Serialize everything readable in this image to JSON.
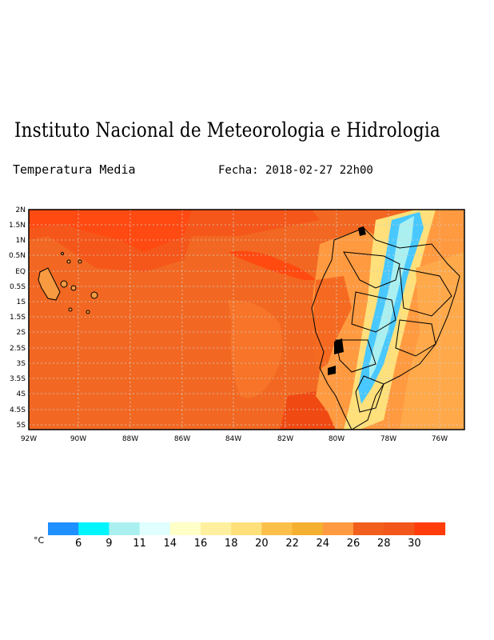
{
  "header": {
    "title": "Instituto Nacional de Meteorologia e Hidrologia",
    "variable": "Temperatura Media",
    "date": "Fecha: 2018-02-27 22h00"
  },
  "map": {
    "lat_labels": [
      "2N",
      "1.5N",
      "1N",
      "0.5N",
      "EQ",
      "0.5S",
      "1S",
      "1.5S",
      "2S",
      "2.5S",
      "3S",
      "3.5S",
      "4S",
      "4.5S",
      "5S"
    ],
    "lon_labels": [
      "92W",
      "90W",
      "88W",
      "86W",
      "84W",
      "82W",
      "80W",
      "78W",
      "76W"
    ],
    "extent": {
      "lon_min": -92,
      "lon_max": -75,
      "lat_min": -5.2,
      "lat_max": 2
    }
  },
  "legend": {
    "unit": "°C",
    "colors": [
      "#1e90ff",
      "#00f5ff",
      "#aaf0f0",
      "#e0ffff",
      "#ffffc8",
      "#fff0a0",
      "#ffe07a",
      "#fcc04a",
      "#f5b030",
      "#ff9a40",
      "#f25e1c",
      "#f2561a",
      "#ff3c0a"
    ],
    "ticks": [
      "6",
      "9",
      "11",
      "14",
      "16",
      "18",
      "20",
      "22",
      "24",
      "26",
      "28",
      "30"
    ]
  },
  "colors": {
    "ocean_warm": "#f46a20",
    "ocean_cooler": "#f36522",
    "hot": "#ff4a10",
    "andes_cold": "#48c8ff",
    "land_mid": "#ffa040"
  }
}
